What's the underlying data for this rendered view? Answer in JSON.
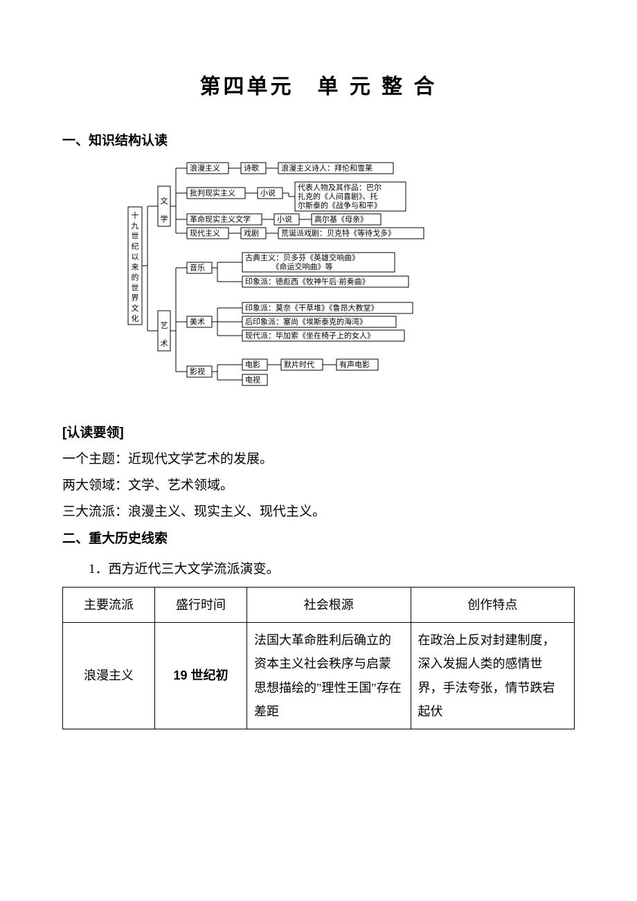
{
  "title": "第四单元　单 元 整 合",
  "section1_heading": "一、知识结构认读",
  "diagram": {
    "font_family": "SimSun",
    "font_size": 11,
    "stroke": "#000000",
    "fill": "#ffffff",
    "root": "十九世纪以来的世界文化",
    "cat_literature": "文学",
    "cat_art": "艺术",
    "lit_romantic": "浪漫主义",
    "lit_poetry": "诗歌",
    "lit_romantic_rep": "浪漫主义诗人：拜伦和雪莱",
    "lit_critical": "批判现实主义",
    "lit_novel": "小说",
    "lit_critical_rep1": "代表人物及其作品：巴尔",
    "lit_critical_rep2": "扎克的《人间喜剧》、托",
    "lit_critical_rep3": "尔斯泰的《战争与和平》",
    "lit_revreal": "革命现实主义文学",
    "lit_revreal_rep": "高尔基《母亲》",
    "lit_modern": "现代主义",
    "lit_drama": "戏剧",
    "lit_modern_rep": "荒诞派戏剧：贝克特《等待戈多》",
    "art_music": "音乐",
    "music_classical": "古典主义：贝多芬《英雄交响曲》",
    "music_classical2": "《命运交响曲》等",
    "music_impression": "印象派：德彪西《牧神午后·前奏曲》",
    "art_fine": "美术",
    "fine_impression": "印象派：莫奈《干草堆》《鲁昂大教堂》",
    "fine_post": "后印象派：塞尚《埃斯泰克的海湾》",
    "fine_modern": "现代派：毕加索《坐在椅子上的女人》",
    "art_filmtv": "影视",
    "film_movie": "电影",
    "film_silent": "默片时代",
    "film_sound": "有声电影",
    "film_tv": "电视"
  },
  "reading_guide_h": "[认读要领]",
  "guide_1": "一个主题：近现代文学艺术的发展。",
  "guide_2": "两大领域：文学、艺术领域。",
  "guide_3": "三大流派：浪漫主义、现实主义、现代主义。",
  "section2_heading": "二、重大历史线索",
  "item_1": "1．西方近代三大文学流派演变。",
  "table": {
    "headers": [
      "主要流派",
      "盛行时间",
      "社会根源",
      "创作特点"
    ],
    "row1": {
      "school": "浪漫主义",
      "time": "19 世纪初",
      "root": "法国大革命胜利后确立的资本主义社会秩序与启蒙思想描绘的\"理性王国\"存在差距",
      "feature": "在政治上反对封建制度，深入发掘人类的感情世界，手法夸张，情节跌宕起伏"
    },
    "col_widths": [
      "18%",
      "18%",
      "32%",
      "32%"
    ]
  }
}
